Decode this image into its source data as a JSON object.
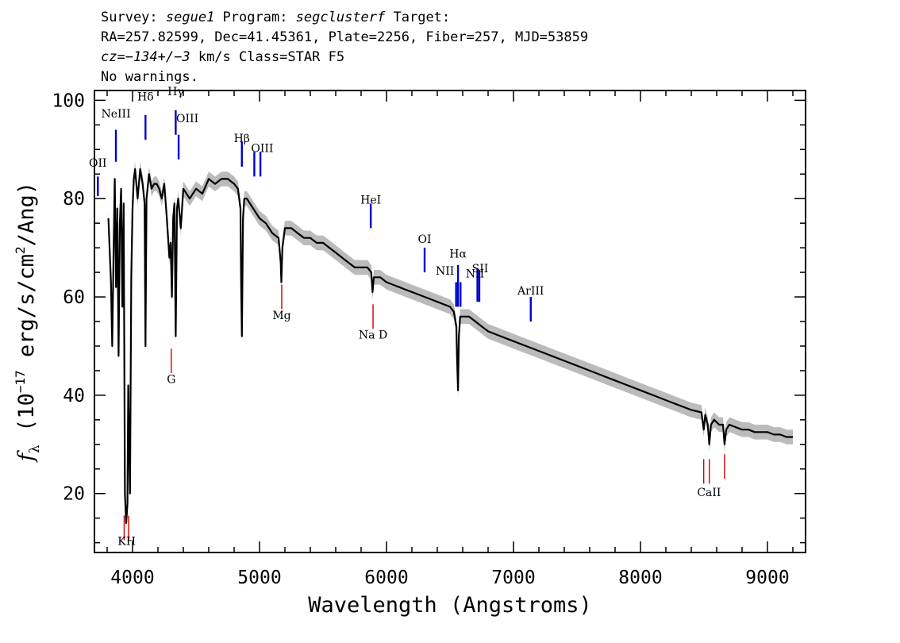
{
  "header": {
    "line1": {
      "survey_label": "Survey: ",
      "survey": "segue1",
      "program_label": " Program: ",
      "program": "segclusterf",
      "target_label": " Target:"
    },
    "line2": "RA=257.82599, Dec=41.45361, Plate=2256, Fiber=257, MJD=53859",
    "line3": {
      "cz": "cz=−134+/−3",
      "rest": " km/s Class=STAR F5"
    },
    "line4": "No warnings."
  },
  "chart_data": {
    "type": "line",
    "xlabel": "Wavelength (Angstroms)",
    "ylabel": "f_λ (10^-17 erg/s/cm^2/Ang)",
    "xlim": [
      3700,
      9300
    ],
    "ylim": [
      8,
      102
    ],
    "xticks": [
      4000,
      5000,
      6000,
      7000,
      8000,
      9000
    ],
    "yticks": [
      20,
      40,
      60,
      80,
      100
    ],
    "series": [
      {
        "role": "flux",
        "color": "#000000",
        "x": [
          3810,
          3830,
          3840,
          3850,
          3860,
          3870,
          3880,
          3890,
          3900,
          3910,
          3920,
          3930,
          3940,
          3950,
          3960,
          3966,
          3970,
          3980,
          3990,
          4000,
          4010,
          4020,
          4040,
          4060,
          4080,
          4095,
          4102,
          4110,
          4130,
          4150,
          4170,
          4190,
          4210,
          4230,
          4250,
          4270,
          4290,
          4300,
          4310,
          4320,
          4330,
          4340,
          4350,
          4360,
          4380,
          4400,
          4450,
          4500,
          4550,
          4600,
          4650,
          4700,
          4750,
          4800,
          4830,
          4850,
          4855,
          4861,
          4870,
          4880,
          4900,
          4950,
          5000,
          5050,
          5100,
          5150,
          5167,
          5172,
          5180,
          5200,
          5250,
          5300,
          5350,
          5400,
          5450,
          5500,
          5550,
          5600,
          5650,
          5700,
          5750,
          5800,
          5850,
          5880,
          5890,
          5900,
          5920,
          5950,
          6000,
          6100,
          6200,
          6300,
          6400,
          6500,
          6530,
          6550,
          6555,
          6563,
          6570,
          6580,
          6600,
          6650,
          6700,
          6750,
          6800,
          6900,
          7000,
          7100,
          7200,
          7300,
          7400,
          7500,
          7600,
          7700,
          7800,
          7900,
          8000,
          8100,
          8200,
          8300,
          8400,
          8480,
          8498,
          8510,
          8530,
          8542,
          8555,
          8580,
          8620,
          8650,
          8662,
          8675,
          8700,
          8750,
          8800,
          8850,
          8900,
          8950,
          9000,
          9050,
          9100,
          9150,
          9200
        ],
        "values": [
          76,
          63,
          50,
          68,
          84,
          62,
          78,
          48,
          75,
          82,
          58,
          79,
          20,
          14,
          18,
          42,
          35,
          20,
          64,
          78,
          84,
          86,
          80,
          86,
          83,
          79,
          50,
          80,
          85,
          82,
          83,
          83,
          82,
          80,
          83,
          76,
          68,
          71,
          60,
          76,
          79,
          52,
          78,
          80,
          74,
          82,
          80,
          82,
          81,
          84,
          83,
          84,
          84,
          83,
          82,
          78,
          63,
          52,
          76,
          80,
          80,
          78,
          76,
          75,
          73,
          72,
          67,
          63,
          70,
          74,
          74,
          73,
          72,
          72,
          71,
          71,
          70,
          69,
          68,
          67,
          66,
          66,
          66,
          65,
          61,
          64,
          64,
          64,
          63,
          62,
          61,
          60,
          59,
          58,
          57,
          54,
          48,
          41,
          52,
          56,
          56,
          56,
          55,
          54,
          53,
          52,
          51,
          50,
          49,
          48,
          47,
          46,
          45,
          44,
          43,
          42,
          41,
          40,
          39,
          38,
          37,
          36.5,
          33,
          36,
          34,
          30,
          34,
          35,
          34,
          34,
          30,
          33,
          34,
          33.5,
          33,
          33,
          32.5,
          32.5,
          32.5,
          32,
          32,
          31.5,
          31.5
        ]
      },
      {
        "role": "error band half-width",
        "color": "#bbbbbb",
        "values": [
          1.5
        ]
      }
    ],
    "line_markers": [
      {
        "label": "OII",
        "wavelength": 3727,
        "color": "#0000cc",
        "label_y": 86.5,
        "y0": 80.5,
        "y1": 84.5
      },
      {
        "label": "NeIII",
        "wavelength": 3869,
        "color": "#0000cc",
        "label_y": 96.5,
        "y0": 87.5,
        "y1": 94
      },
      {
        "label": "Hδ",
        "wavelength": 4102,
        "color": "#0000cc",
        "label_y": 100,
        "y0": 92,
        "y1": 97
      },
      {
        "label": "Hγ",
        "wavelength": 4340,
        "color": "#0000cc",
        "label_y": 101,
        "y0": 93,
        "y1": 98
      },
      {
        "label": "OIII",
        "wavelength": 4363,
        "color": "#0000cc",
        "label_y": 95.5,
        "y0": 88,
        "y1": 93
      },
      {
        "label": "Hβ",
        "wavelength": 4861,
        "color": "#0000cc",
        "label_y": 91.5,
        "y0": 86.5,
        "y1": 91.5
      },
      {
        "label": "OIII",
        "wavelength": 4959,
        "color": "#0000cc",
        "label_y": 89.5,
        "y0": 84.5,
        "y1": 89.5
      },
      {
        "label": "",
        "wavelength": 5007,
        "color": "#0000cc",
        "y0": 84.5,
        "y1": 89.5
      },
      {
        "label": "HeI",
        "wavelength": 5876,
        "color": "#0000cc",
        "label_y": 79,
        "y0": 74,
        "y1": 79
      },
      {
        "label": "OI",
        "wavelength": 6300,
        "color": "#0000cc",
        "label_y": 71,
        "y0": 65,
        "y1": 70
      },
      {
        "label": "NII",
        "wavelength": 6548,
        "color": "#0000cc",
        "label_y": 64.5,
        "y0": 58,
        "y1": 63
      },
      {
        "label": "Hα",
        "wavelength": 6563,
        "color": "#0000cc",
        "label_y": 68,
        "y0": 58,
        "y1": 66.5
      },
      {
        "label": "",
        "wavelength": 6583,
        "color": "#0000cc",
        "y0": 58,
        "y1": 63
      },
      {
        "label": "NII",
        "wavelength": 6716,
        "color": "#0000cc",
        "label_y": 64,
        "y0": 59,
        "y1": 65.5
      },
      {
        "label": "SII",
        "wavelength": 6731,
        "color": "#0000cc",
        "label_y": 65,
        "y0": 59,
        "y1": 65.5
      },
      {
        "label": "ArIII",
        "wavelength": 7136,
        "color": "#0000cc",
        "label_y": 60.5,
        "y0": 55,
        "y1": 60
      },
      {
        "label": "K",
        "wavelength": 3934,
        "color": "#cc0000",
        "label_y": 9.5,
        "y0": 10.5,
        "y1": 15.5
      },
      {
        "label": "H",
        "wavelength": 3969,
        "color": "#cc0000",
        "label_y": 9.5,
        "y0": 10.5,
        "y1": 15.5
      },
      {
        "label": "G",
        "wavelength": 4305,
        "color": "#cc0000",
        "label_y": 42.5,
        "y0": 44.5,
        "y1": 49.5
      },
      {
        "label": "Mg",
        "wavelength": 5175,
        "color": "#cc0000",
        "label_y": 55.5,
        "y0": 57.5,
        "y1": 62.5
      },
      {
        "label": "Na D",
        "wavelength": 5894,
        "color": "#cc0000",
        "label_y": 51.5,
        "y0": 53.5,
        "y1": 58.5
      },
      {
        "label": "CaII",
        "wavelength": 8498,
        "color": "#cc0000",
        "label_y": 19.5,
        "y0": 22,
        "y1": 27
      },
      {
        "label": "",
        "wavelength": 8542,
        "color": "#cc0000",
        "y0": 22,
        "y1": 27
      },
      {
        "label": "",
        "wavelength": 8662,
        "color": "#cc0000",
        "y0": 23,
        "y1": 28
      }
    ]
  }
}
